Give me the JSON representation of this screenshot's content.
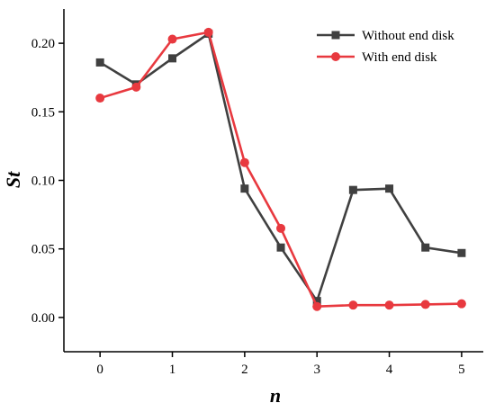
{
  "chart_data": {
    "type": "line",
    "xlabel": "n",
    "ylabel": "St",
    "xlim": [
      -0.5,
      5.3
    ],
    "ylim": [
      -0.025,
      0.225
    ],
    "xticks": [
      0,
      1,
      2,
      3,
      4,
      5
    ],
    "yticks": [
      0.0,
      0.05,
      0.1,
      0.15,
      0.2
    ],
    "xtick_labels": [
      "0",
      "1",
      "2",
      "3",
      "4",
      "5"
    ],
    "ytick_labels": [
      "0.00",
      "0.05",
      "0.10",
      "0.15",
      "0.20"
    ],
    "grid": false,
    "legend_position": "top-right",
    "series": [
      {
        "name": "Without end disk",
        "color": "#404040",
        "marker": "square",
        "x": [
          0,
          0.5,
          1,
          1.5,
          2,
          2.5,
          3,
          3.5,
          4,
          4.5,
          5
        ],
        "y": [
          0.186,
          0.17,
          0.189,
          0.207,
          0.094,
          0.051,
          0.012,
          0.093,
          0.094,
          0.051,
          0.047
        ]
      },
      {
        "name": "With end disk",
        "color": "#e8393f",
        "marker": "circle",
        "x": [
          0,
          0.5,
          1,
          1.5,
          2,
          2.5,
          3,
          3.5,
          4,
          4.5,
          5
        ],
        "y": [
          0.16,
          0.168,
          0.203,
          0.208,
          0.113,
          0.065,
          0.008,
          0.009,
          0.009,
          0.0095,
          0.01
        ]
      }
    ]
  }
}
